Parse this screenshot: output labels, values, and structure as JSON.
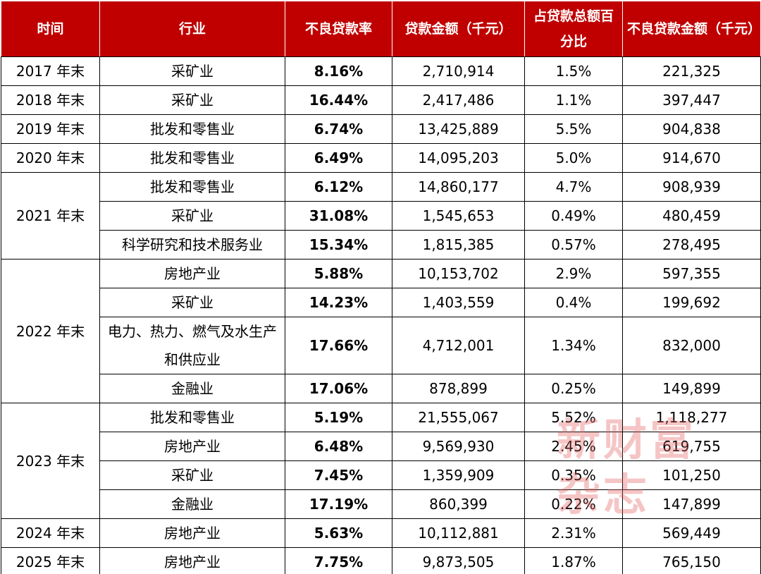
{
  "table": {
    "headers": [
      "时间",
      "行业",
      "不良贷款率",
      "贷款金额（千元）",
      "占贷款总额百分比",
      "不良贷款金额（千元）"
    ],
    "groups": [
      {
        "time": "2017 年末",
        "rows": [
          [
            "采矿业",
            "8.16%",
            "2,710,914",
            "1.5%",
            "221,325"
          ]
        ]
      },
      {
        "time": "2018 年末",
        "rows": [
          [
            "采矿业",
            "16.44%",
            "2,417,486",
            "1.1%",
            "397,447"
          ]
        ]
      },
      {
        "time": "2019 年末",
        "rows": [
          [
            "批发和零售业",
            "6.74%",
            "13,425,889",
            "5.5%",
            "904,838"
          ]
        ]
      },
      {
        "time": "2020 年末",
        "rows": [
          [
            "批发和零售业",
            "6.49%",
            "14,095,203",
            "5.0%",
            "914,670"
          ]
        ]
      },
      {
        "time": "2021 年末",
        "rows": [
          [
            "批发和零售业",
            "6.12%",
            "14,860,177",
            "4.7%",
            "908,939"
          ],
          [
            "采矿业",
            "31.08%",
            "1,545,653",
            "0.49%",
            "480,459"
          ],
          [
            "科学研究和技术服务业",
            "15.34%",
            "1,815,385",
            "0.57%",
            "278,495"
          ]
        ]
      },
      {
        "time": "2022 年末",
        "rows": [
          [
            "房地产业",
            "5.88%",
            "10,153,702",
            "2.9%",
            "597,355"
          ],
          [
            "采矿业",
            "14.23%",
            "1,403,559",
            "0.4%",
            "199,692"
          ],
          [
            "电力、热力、燃气及水生产和供应业",
            "17.66%",
            "4,712,001",
            "1.34%",
            "832,000"
          ],
          [
            "金融业",
            "17.06%",
            "878,899",
            "0.25%",
            "149,899"
          ]
        ]
      },
      {
        "time": "2023 年末",
        "rows": [
          [
            "批发和零售业",
            "5.19%",
            "21,555,067",
            "5.52%",
            "1,118,277"
          ],
          [
            "房地产业",
            "6.48%",
            "9,569,930",
            "2.45%",
            "619,755"
          ],
          [
            "采矿业",
            "7.45%",
            "1,359,909",
            "0.35%",
            "101,250"
          ],
          [
            "金融业",
            "17.19%",
            "860,399",
            "0.22%",
            "147,899"
          ]
        ]
      },
      {
        "time": "2024 年末",
        "rows": [
          [
            "房地产业",
            "5.63%",
            "10,112,881",
            "2.31%",
            "569,449"
          ]
        ]
      },
      {
        "time": "2025 年末",
        "rows": [
          [
            "房地产业",
            "7.75%",
            "9,873,505",
            "1.87%",
            "765,150"
          ]
        ]
      }
    ]
  },
  "watermark": {
    "line1": "新财富",
    "line2": "杂志"
  }
}
